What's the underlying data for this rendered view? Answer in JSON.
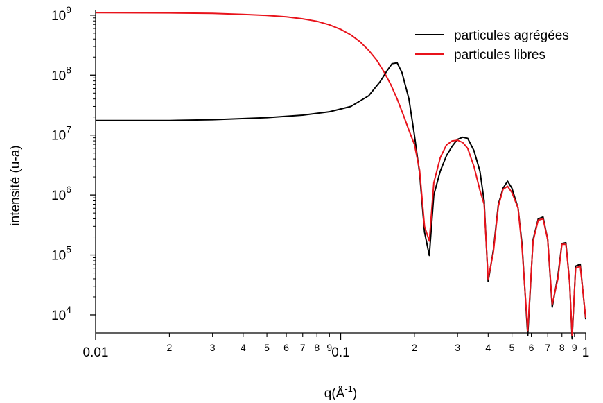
{
  "chart_data": {
    "type": "line",
    "xscale": "log",
    "yscale": "log",
    "xlim": [
      0.01,
      1
    ],
    "ylim": [
      5000,
      1200000000
    ],
    "xlabel": "q(Å",
    "xlabel_sup": "-1",
    "xlabel_end": ")",
    "ylabel": "intensité (u-a)",
    "x_major_ticks": [
      {
        "value": 0.01,
        "label": "0.01"
      },
      {
        "value": 0.1,
        "label": "0.1"
      },
      {
        "value": 1,
        "label": "1"
      }
    ],
    "x_minor_ticks": [
      {
        "value": 0.02,
        "label": "2"
      },
      {
        "value": 0.03,
        "label": "3"
      },
      {
        "value": 0.04,
        "label": "4"
      },
      {
        "value": 0.05,
        "label": "5"
      },
      {
        "value": 0.06,
        "label": "6"
      },
      {
        "value": 0.07,
        "label": "7"
      },
      {
        "value": 0.08,
        "label": "8"
      },
      {
        "value": 0.09,
        "label": "9"
      },
      {
        "value": 0.2,
        "label": "2"
      },
      {
        "value": 0.3,
        "label": "3"
      },
      {
        "value": 0.4,
        "label": "4"
      },
      {
        "value": 0.5,
        "label": "5"
      },
      {
        "value": 0.6,
        "label": "6"
      },
      {
        "value": 0.7,
        "label": "7"
      },
      {
        "value": 0.8,
        "label": "8"
      },
      {
        "value": 0.9,
        "label": "9"
      }
    ],
    "y_major_ticks": [
      {
        "value": 10000,
        "base": "10",
        "exp": "4"
      },
      {
        "value": 100000,
        "base": "10",
        "exp": "5"
      },
      {
        "value": 1000000,
        "base": "10",
        "exp": "6"
      },
      {
        "value": 10000000,
        "base": "10",
        "exp": "7"
      },
      {
        "value": 100000000,
        "base": "10",
        "exp": "8"
      },
      {
        "value": 1000000000,
        "base": "10",
        "exp": "9"
      }
    ],
    "legend_position": "top-right",
    "series": [
      {
        "name": "particules agrégées",
        "color": "#000000",
        "x": [
          0.01,
          0.02,
          0.03,
          0.05,
          0.07,
          0.09,
          0.11,
          0.13,
          0.145,
          0.155,
          0.162,
          0.17,
          0.178,
          0.19,
          0.2,
          0.21,
          0.22,
          0.23,
          0.24,
          0.255,
          0.27,
          0.285,
          0.3,
          0.315,
          0.33,
          0.35,
          0.37,
          0.385,
          0.4,
          0.42,
          0.44,
          0.46,
          0.48,
          0.5,
          0.53,
          0.55,
          0.58,
          0.61,
          0.64,
          0.67,
          0.7,
          0.73,
          0.77,
          0.8,
          0.83,
          0.86,
          0.88,
          0.91,
          0.95,
          1.0
        ],
        "y": [
          17500000,
          17500000,
          18000000,
          19500000,
          21500000,
          24500000,
          30000000,
          45000000,
          78000000,
          120000000,
          155000000,
          160000000,
          110000000,
          40000000,
          10000000,
          2300000,
          240000,
          98000,
          1000000,
          2500000,
          4500000,
          6500000,
          8500000,
          9200000,
          8800000,
          5500000,
          2500000,
          800000,
          36000,
          120000,
          700000,
          1300000,
          1700000,
          1300000,
          600000,
          150000,
          4500,
          180000,
          400000,
          430000,
          180000,
          13500,
          45000,
          155000,
          160000,
          35000,
          4000,
          65000,
          70000,
          8500
        ]
      },
      {
        "name": "particules libres",
        "color": "#e8131b",
        "x": [
          0.01,
          0.02,
          0.03,
          0.04,
          0.05,
          0.06,
          0.07,
          0.08,
          0.09,
          0.1,
          0.11,
          0.12,
          0.13,
          0.14,
          0.15,
          0.16,
          0.17,
          0.18,
          0.19,
          0.2,
          0.21,
          0.22,
          0.23,
          0.24,
          0.255,
          0.27,
          0.285,
          0.3,
          0.315,
          0.33,
          0.35,
          0.37,
          0.385,
          0.4,
          0.42,
          0.44,
          0.46,
          0.48,
          0.5,
          0.53,
          0.55,
          0.58,
          0.61,
          0.64,
          0.67,
          0.7,
          0.73,
          0.77,
          0.8,
          0.83,
          0.86,
          0.88,
          0.91,
          0.95,
          1.0
        ],
        "y": [
          1100000000,
          1090000000,
          1070000000,
          1030000000,
          990000000,
          940000000,
          870000000,
          790000000,
          690000000,
          580000000,
          470000000,
          360000000,
          260000000,
          180000000,
          115000000,
          70000000,
          40000000,
          22000000,
          12000000,
          7000000,
          2600000,
          300000,
          170000,
          1600000,
          4200000,
          6800000,
          8000000,
          8200000,
          7500000,
          6000000,
          3000000,
          1200000,
          700000,
          40000,
          110000,
          650000,
          1250000,
          1400000,
          1100000,
          600000,
          130000,
          5500,
          170000,
          380000,
          400000,
          180000,
          15000,
          40000,
          150000,
          150000,
          35000,
          4500,
          60000,
          65000,
          9000
        ]
      }
    ]
  }
}
